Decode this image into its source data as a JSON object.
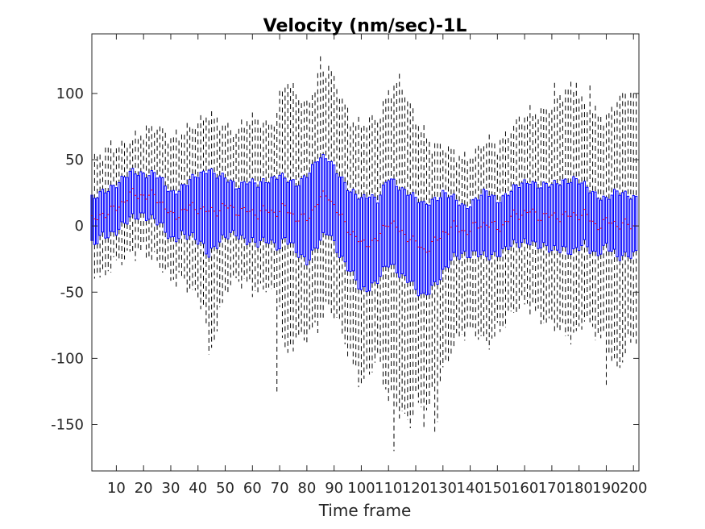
{
  "chart_data": {
    "type": "box",
    "title": "Velocity (nm/sec)-1L",
    "xlabel": "Time frame",
    "ylabel": "",
    "xlim": [
      1,
      202
    ],
    "ylim": [
      -185,
      145
    ],
    "xticks": [
      10,
      20,
      30,
      40,
      50,
      60,
      70,
      80,
      90,
      100,
      110,
      120,
      130,
      140,
      150,
      160,
      170,
      180,
      190,
      200
    ],
    "yticks": [
      100,
      50,
      0,
      -50,
      -100,
      -150
    ],
    "box_color": "#0000ff",
    "whisker_color": "#000000",
    "median_color": "#ff0000",
    "grid": false,
    "n_boxes": 201,
    "q1_anchor_x": [
      2,
      5,
      8,
      12,
      16,
      20,
      24,
      28,
      30,
      34,
      38,
      42,
      44,
      46,
      50,
      54,
      58,
      62,
      66,
      70,
      72,
      76,
      80,
      84,
      88,
      92,
      96,
      100,
      103,
      106,
      110,
      114,
      118,
      120,
      123,
      126,
      130,
      134,
      138,
      142,
      146,
      150,
      154,
      158,
      162,
      166,
      170,
      174,
      178,
      182,
      186,
      190,
      194,
      198,
      202
    ],
    "q1": [
      -15,
      -8,
      -5,
      0,
      5,
      10,
      5,
      -5,
      -10,
      -5,
      -10,
      -15,
      -20,
      -15,
      -10,
      -5,
      -10,
      -15,
      -10,
      -15,
      -10,
      -20,
      -25,
      -15,
      -5,
      -20,
      -35,
      -50,
      -45,
      -40,
      -30,
      -35,
      -40,
      -50,
      -55,
      -45,
      -35,
      -25,
      -20,
      -20,
      -25,
      -20,
      -15,
      -15,
      -10,
      -15,
      -20,
      -15,
      -20,
      -15,
      -20,
      -15,
      -25,
      -20,
      -20
    ],
    "q3": [
      20,
      25,
      30,
      35,
      40,
      40,
      40,
      30,
      25,
      30,
      35,
      40,
      45,
      40,
      35,
      30,
      35,
      30,
      35,
      40,
      35,
      30,
      40,
      50,
      50,
      40,
      25,
      20,
      25,
      20,
      35,
      30,
      25,
      20,
      15,
      20,
      25,
      20,
      15,
      20,
      25,
      20,
      25,
      30,
      35,
      30,
      30,
      35,
      35,
      30,
      25,
      20,
      25,
      25,
      20
    ],
    "whisker_low": [
      -35,
      -40,
      -30,
      -25,
      -20,
      -20,
      -25,
      -35,
      -40,
      -40,
      -50,
      -60,
      -90,
      -85,
      -50,
      -40,
      -45,
      -50,
      -45,
      -60,
      -100,
      -85,
      -85,
      -75,
      -60,
      -75,
      -100,
      -120,
      -110,
      -100,
      -130,
      -140,
      -150,
      -130,
      -145,
      -130,
      -110,
      -90,
      -80,
      -80,
      -90,
      -80,
      -70,
      -60,
      -60,
      -70,
      -75,
      -80,
      -85,
      -70,
      -80,
      -90,
      -110,
      -90,
      -80
    ],
    "whisker_high": [
      50,
      55,
      60,
      60,
      65,
      70,
      75,
      70,
      65,
      70,
      75,
      80,
      85,
      80,
      75,
      70,
      80,
      80,
      75,
      85,
      110,
      100,
      90,
      110,
      120,
      100,
      80,
      75,
      80,
      80,
      100,
      110,
      90,
      80,
      70,
      60,
      60,
      55,
      50,
      55,
      65,
      60,
      70,
      80,
      85,
      85,
      90,
      100,
      105,
      90,
      85,
      80,
      95,
      100,
      100
    ],
    "spikes": [
      {
        "x": 44,
        "low": -97
      },
      {
        "x": 69,
        "low": -125
      },
      {
        "x": 70,
        "high": 102
      },
      {
        "x": 85,
        "high": 128
      },
      {
        "x": 112,
        "low": -170
      },
      {
        "x": 127,
        "low": -157
      },
      {
        "x": 128,
        "low": -148
      },
      {
        "x": 171,
        "high": 108
      },
      {
        "x": 179,
        "high": 108
      },
      {
        "x": 184,
        "high": 106
      },
      {
        "x": 190,
        "low": -120
      },
      {
        "x": 201,
        "high": 100
      }
    ]
  }
}
